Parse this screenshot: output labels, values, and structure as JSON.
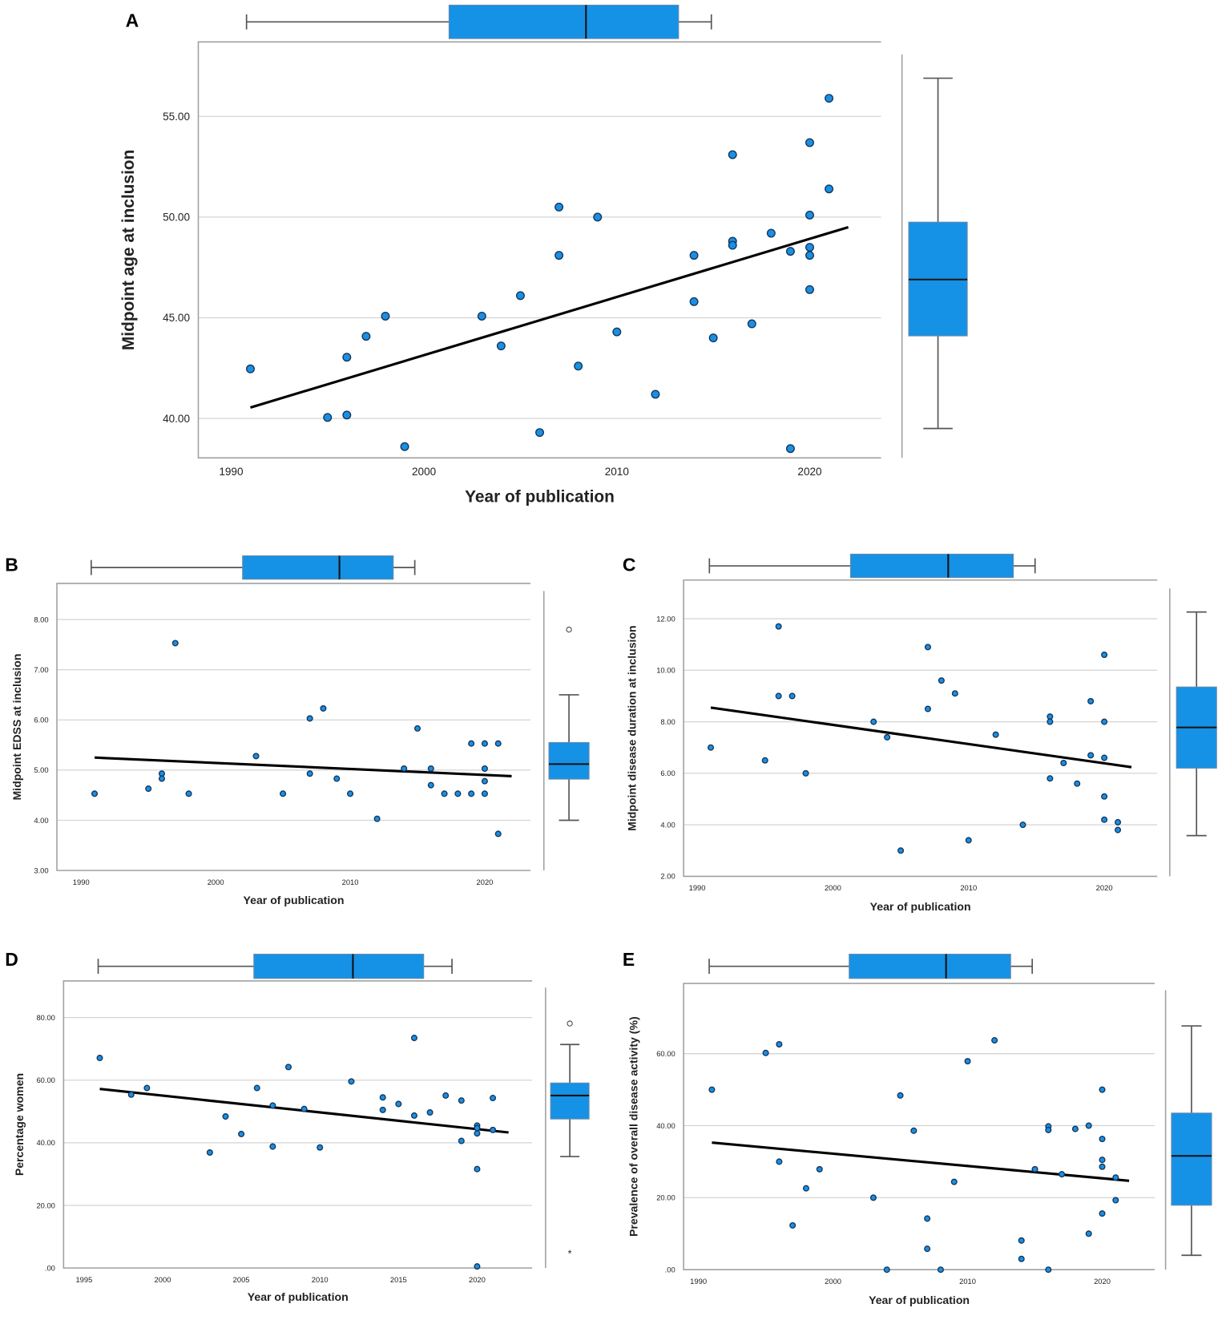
{
  "colors": {
    "point": "#1a8fe3",
    "box": "#1592e6",
    "trend": "#000000",
    "grid": "#d4d4d4"
  },
  "chart_data": [
    {
      "panel": "A",
      "type": "scatter",
      "xlabel": "Year of publication",
      "ylabel": "Midpoint age at inclusion",
      "xlim": [
        1988.3,
        2023.7
      ],
      "ylim": [
        38.04,
        58.7
      ],
      "grid": "horizontal",
      "xticks": [
        {
          "v": 1990,
          "label": "1990"
        },
        {
          "v": 2000,
          "label": "2000"
        },
        {
          "v": 2010,
          "label": "2010"
        },
        {
          "v": 2020,
          "label": "2020"
        }
      ],
      "yticks": [
        {
          "v": 40,
          "label": "40.00"
        },
        {
          "v": 45,
          "label": "45.00"
        },
        {
          "v": 50,
          "label": "50.00"
        },
        {
          "v": 55,
          "label": "55.00"
        }
      ],
      "points": [
        [
          1991,
          42.46
        ],
        [
          1995,
          40.05
        ],
        [
          1996,
          43.04
        ],
        [
          1996,
          40.17
        ],
        [
          1997,
          44.08
        ],
        [
          1998,
          45.08
        ],
        [
          1999,
          38.6
        ],
        [
          2003,
          45.08
        ],
        [
          2004,
          43.6
        ],
        [
          2005,
          46.1
        ],
        [
          2006,
          39.3
        ],
        [
          2007,
          50.5
        ],
        [
          2007,
          48.1
        ],
        [
          2008,
          42.6
        ],
        [
          2009,
          50.0
        ],
        [
          2010,
          44.3
        ],
        [
          2012,
          41.2
        ],
        [
          2014,
          48.1
        ],
        [
          2014,
          45.8
        ],
        [
          2015,
          44.0
        ],
        [
          2016,
          53.1
        ],
        [
          2016,
          48.8
        ],
        [
          2016,
          48.6
        ],
        [
          2017,
          44.7
        ],
        [
          2018,
          49.2
        ],
        [
          2019,
          48.3
        ],
        [
          2019,
          38.5
        ],
        [
          2020,
          53.7
        ],
        [
          2020,
          50.1
        ],
        [
          2020,
          48.5
        ],
        [
          2020,
          48.1
        ],
        [
          2020,
          46.4
        ],
        [
          2021,
          55.9
        ],
        [
          2021,
          51.4
        ]
      ],
      "trend": [
        [
          1991,
          40.54
        ],
        [
          2022,
          49.5
        ]
      ],
      "y_boxplot": {
        "min": 39.5,
        "q1": 44.1,
        "median": 46.9,
        "q3": 49.75,
        "max": 56.9,
        "outliers": [],
        "extremes": []
      },
      "x_boxplot": {
        "min": 1990.8,
        "q1": 2001.3,
        "median": 2008.4,
        "q3": 2013.2,
        "max": 2014.9
      }
    },
    {
      "panel": "B",
      "type": "scatter",
      "xlabel": "Year of publication",
      "ylabel": "Midpoint EDSS at inclusion",
      "xlim": [
        1988.2,
        2023.4
      ],
      "ylim": [
        3.0,
        8.72
      ],
      "grid": "horizontal",
      "xticks": [
        {
          "v": 1990,
          "label": "1990"
        },
        {
          "v": 2000,
          "label": "2000"
        },
        {
          "v": 2010,
          "label": "2010"
        },
        {
          "v": 2020,
          "label": "2020"
        }
      ],
      "yticks": [
        {
          "v": 3,
          "label": "3.00"
        },
        {
          "v": 4,
          "label": "4.00"
        },
        {
          "v": 5,
          "label": "5.00"
        },
        {
          "v": 6,
          "label": "6.00"
        },
        {
          "v": 7,
          "label": "7.00"
        },
        {
          "v": 8,
          "label": "8.00"
        }
      ],
      "points": [
        [
          1991,
          4.53
        ],
        [
          1995,
          4.63
        ],
        [
          1996,
          4.93
        ],
        [
          1996,
          4.83
        ],
        [
          1997,
          7.53
        ],
        [
          1998,
          4.53
        ],
        [
          2003,
          5.28
        ],
        [
          2005,
          4.53
        ],
        [
          2007,
          6.03
        ],
        [
          2007,
          4.93
        ],
        [
          2008,
          6.23
        ],
        [
          2009,
          4.83
        ],
        [
          2010,
          4.53
        ],
        [
          2012,
          4.03
        ],
        [
          2014,
          5.03
        ],
        [
          2015,
          5.83
        ],
        [
          2016,
          5.03
        ],
        [
          2016,
          4.7
        ],
        [
          2017,
          4.53
        ],
        [
          2018,
          4.53
        ],
        [
          2019,
          5.53
        ],
        [
          2019,
          4.53
        ],
        [
          2020,
          5.53
        ],
        [
          2020,
          5.03
        ],
        [
          2020,
          4.78
        ],
        [
          2020,
          4.53
        ],
        [
          2021,
          5.53
        ],
        [
          2021,
          3.73
        ]
      ],
      "trend": [
        [
          1991,
          5.25
        ],
        [
          2022,
          4.88
        ]
      ],
      "y_boxplot": {
        "min": 4.0,
        "q1": 4.82,
        "median": 5.12,
        "q3": 5.55,
        "max": 6.5,
        "outliers": [
          7.8
        ],
        "extremes": []
      },
      "x_boxplot": {
        "min": 1990.75,
        "q1": 2002.0,
        "median": 2009.2,
        "q3": 2013.2,
        "max": 2014.8
      }
    },
    {
      "panel": "C",
      "type": "scatter",
      "xlabel": "Year of publication",
      "ylabel": "Midpoint disease duration at inclusion",
      "xlim": [
        1989.0,
        2023.9
      ],
      "ylim": [
        2.0,
        13.5
      ],
      "grid": "horizontal",
      "xticks": [
        {
          "v": 1990,
          "label": "1990"
        },
        {
          "v": 2000,
          "label": "2000"
        },
        {
          "v": 2010,
          "label": "2010"
        },
        {
          "v": 2020,
          "label": "2020"
        }
      ],
      "yticks": [
        {
          "v": 2,
          "label": "2.00"
        },
        {
          "v": 4,
          "label": "4.00"
        },
        {
          "v": 6,
          "label": "6.00"
        },
        {
          "v": 8,
          "label": "8.00"
        },
        {
          "v": 10,
          "label": "10.00"
        },
        {
          "v": 12,
          "label": "12.00"
        }
      ],
      "points": [
        [
          1991,
          7.0
        ],
        [
          1995,
          6.5
        ],
        [
          1996,
          11.7
        ],
        [
          1996,
          9.0
        ],
        [
          1997,
          9.0
        ],
        [
          1998,
          6.0
        ],
        [
          2003,
          8.0
        ],
        [
          2004,
          7.4
        ],
        [
          2005,
          3.0
        ],
        [
          2007,
          10.9
        ],
        [
          2007,
          8.5
        ],
        [
          2008,
          9.6
        ],
        [
          2009,
          9.1
        ],
        [
          2010,
          3.4
        ],
        [
          2012,
          7.5
        ],
        [
          2014,
          4.0
        ],
        [
          2016,
          8.2
        ],
        [
          2016,
          8.0
        ],
        [
          2016,
          5.8
        ],
        [
          2017,
          6.4
        ],
        [
          2018,
          5.6
        ],
        [
          2019,
          8.8
        ],
        [
          2019,
          6.7
        ],
        [
          2020,
          10.6
        ],
        [
          2020,
          8.0
        ],
        [
          2020,
          6.6
        ],
        [
          2020,
          5.1
        ],
        [
          2020,
          4.2
        ],
        [
          2021,
          4.1
        ],
        [
          2021,
          3.8
        ]
      ],
      "trend": [
        [
          1991,
          8.55
        ],
        [
          2022,
          6.24
        ]
      ],
      "y_boxplot": {
        "min": 3.58,
        "q1": 6.2,
        "median": 7.78,
        "q3": 9.35,
        "max": 12.26,
        "outliers": [],
        "extremes": []
      },
      "x_boxplot": {
        "min": 1990.9,
        "q1": 2001.3,
        "median": 2008.5,
        "q3": 2013.3,
        "max": 2014.9
      }
    },
    {
      "panel": "D",
      "type": "scatter",
      "xlabel": "Year of publication",
      "ylabel": "Percentage women",
      "xlim": [
        1993.7,
        2023.5
      ],
      "ylim": [
        0,
        91.7
      ],
      "grid": "horizontal",
      "xticks": [
        {
          "v": 1995,
          "label": "1995"
        },
        {
          "v": 2000,
          "label": "2000"
        },
        {
          "v": 2005,
          "label": "2005"
        },
        {
          "v": 2010,
          "label": "2010"
        },
        {
          "v": 2015,
          "label": "2015"
        },
        {
          "v": 2020,
          "label": "2020"
        }
      ],
      "yticks": [
        {
          "v": 0,
          "label": ".00"
        },
        {
          "v": 20,
          "label": "20.00"
        },
        {
          "v": 40,
          "label": "40.00"
        },
        {
          "v": 60,
          "label": "60.00"
        },
        {
          "v": 80,
          "label": "80.00"
        }
      ],
      "points": [
        [
          1996,
          67.1
        ],
        [
          1998,
          55.4
        ],
        [
          1999,
          57.5
        ],
        [
          2003,
          36.9
        ],
        [
          2004,
          48.4
        ],
        [
          2005,
          42.8
        ],
        [
          2006,
          57.5
        ],
        [
          2007,
          51.9
        ],
        [
          2007,
          38.8
        ],
        [
          2008,
          64.2
        ],
        [
          2009,
          50.8
        ],
        [
          2010,
          38.5
        ],
        [
          2012,
          59.6
        ],
        [
          2014,
          54.5
        ],
        [
          2014,
          50.5
        ],
        [
          2015,
          52.4
        ],
        [
          2016,
          73.5
        ],
        [
          2016,
          48.7
        ],
        [
          2017,
          49.7
        ],
        [
          2018,
          55.1
        ],
        [
          2019,
          53.5
        ],
        [
          2019,
          40.6
        ],
        [
          2020,
          45.5
        ],
        [
          2020,
          44.7
        ],
        [
          2020,
          43.0
        ],
        [
          2020,
          31.6
        ],
        [
          2020,
          0.5
        ],
        [
          2021,
          54.3
        ],
        [
          2021,
          44.1
        ]
      ],
      "trend": [
        [
          1996,
          57.2
        ],
        [
          2022,
          43.3
        ]
      ],
      "y_boxplot": {
        "min": 35.6,
        "q1": 47.6,
        "median": 55.1,
        "q3": 59.1,
        "max": 71.4,
        "outliers": [
          78.1
        ],
        "extremes": [
          4.8
        ]
      },
      "x_boxplot": {
        "min": 1995.9,
        "q1": 2005.8,
        "median": 2012.1,
        "q3": 2016.6,
        "max": 2018.4
      }
    },
    {
      "panel": "E",
      "type": "scatter",
      "xlabel": "Year of publication",
      "ylabel": "Prevalence of overall disease activity (%)",
      "xlim": [
        1988.9,
        2023.9
      ],
      "ylim": [
        0,
        79.5
      ],
      "grid": "horizontal",
      "xticks": [
        {
          "v": 1990,
          "label": "1990"
        },
        {
          "v": 2000,
          "label": "2000"
        },
        {
          "v": 2010,
          "label": "2010"
        },
        {
          "v": 2020,
          "label": "2020"
        }
      ],
      "yticks": [
        {
          "v": 0,
          "label": ".00"
        },
        {
          "v": 20,
          "label": "20.00"
        },
        {
          "v": 40,
          "label": "40.00"
        },
        {
          "v": 60,
          "label": "60.00"
        }
      ],
      "points": [
        [
          1991,
          50.0
        ],
        [
          1995,
          60.2
        ],
        [
          1996,
          62.6
        ],
        [
          1996,
          30.0
        ],
        [
          1997,
          12.3
        ],
        [
          1998,
          22.6
        ],
        [
          1999,
          27.9
        ],
        [
          2003,
          20.0
        ],
        [
          2004,
          0
        ],
        [
          2005,
          48.4
        ],
        [
          2006,
          38.6
        ],
        [
          2007,
          14.2
        ],
        [
          2007,
          5.8
        ],
        [
          2008,
          0
        ],
        [
          2009,
          24.4
        ],
        [
          2010,
          57.9
        ],
        [
          2012,
          63.7
        ],
        [
          2014,
          8.1
        ],
        [
          2014,
          3.0
        ],
        [
          2015,
          27.9
        ],
        [
          2016,
          39.8
        ],
        [
          2016,
          38.8
        ],
        [
          2016,
          0
        ],
        [
          2017,
          26.5
        ],
        [
          2018,
          39.1
        ],
        [
          2019,
          40.0
        ],
        [
          2019,
          10.0
        ],
        [
          2020,
          50.0
        ],
        [
          2020,
          36.3
        ],
        [
          2020,
          30.5
        ],
        [
          2020,
          28.6
        ],
        [
          2020,
          15.6
        ],
        [
          2021,
          25.6
        ],
        [
          2021,
          19.3
        ]
      ],
      "trend": [
        [
          1991,
          35.3
        ],
        [
          2022,
          24.7
        ]
      ],
      "y_boxplot": {
        "min": 4.0,
        "q1": 17.9,
        "median": 31.6,
        "q3": 43.5,
        "max": 67.7,
        "outliers": [],
        "extremes": []
      },
      "x_boxplot": {
        "min": 1990.8,
        "q1": 2001.2,
        "median": 2008.4,
        "q3": 2013.2,
        "max": 2014.8
      }
    }
  ]
}
